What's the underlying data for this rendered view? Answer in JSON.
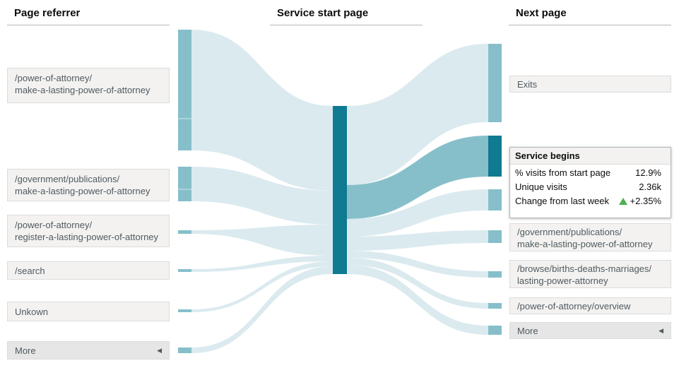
{
  "headers": {
    "referrer": "Page referrer",
    "start": "Service start page",
    "next": "Next page"
  },
  "referrers": [
    {
      "line1": "/power-of-attorney/",
      "line2": "make-a-lasting-power-of-attorney"
    },
    {
      "line1": "/government/publications/",
      "line2": "make-a-lasting-power-of-attorney"
    },
    {
      "line1": "/power-of-attorney/",
      "line2": "register-a-lasting-power-of-attorney"
    },
    {
      "line1": "/search",
      "line2": ""
    },
    {
      "line1": "Unkown",
      "line2": ""
    },
    {
      "line1": "More",
      "line2": ""
    }
  ],
  "next_pages": [
    {
      "line1": "Exits",
      "line2": ""
    },
    {
      "line1": "/government/publications/",
      "line2": "make-a-lasting-power-of-attorney"
    },
    {
      "line1": "/browse/births-deaths-marriages/",
      "line2": "lasting-power-attorney"
    },
    {
      "line1": "/power-of-attorney/overview",
      "line2": ""
    },
    {
      "line1": "More",
      "line2": ""
    }
  ],
  "tooltip": {
    "title": "Service begins",
    "rows": [
      {
        "label": "% visits from start page",
        "value": "12.9%"
      },
      {
        "label": "Unique visits",
        "value": "2.36k"
      },
      {
        "label": "Change from last week",
        "value": "+2.35%"
      }
    ]
  },
  "colors": {
    "link": "#dbeaef",
    "link_highlight": "#86bfca",
    "node": "#86bfca",
    "node_highlight": "#0f7a91",
    "trend_up": "#4caf50"
  }
}
